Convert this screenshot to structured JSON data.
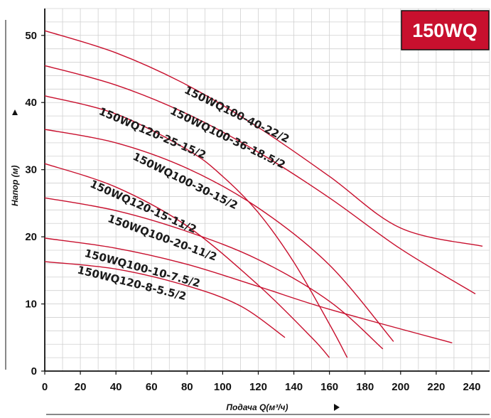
{
  "chart_data": {
    "type": "line",
    "title": "150WQ",
    "xlabel": "Подача Q(м³/ч)",
    "ylabel": "Напор (м)",
    "xlim": [
      0,
      250
    ],
    "ylim": [
      0,
      54
    ],
    "xticks": [
      "0",
      "20",
      "40",
      "60",
      "80",
      "100",
      "120",
      "140",
      "160",
      "180",
      "200",
      "220",
      "240"
    ],
    "yticks": [
      "0",
      "10",
      "20",
      "30",
      "40",
      "50"
    ],
    "grid": true,
    "series": [
      {
        "name": "150WQ100-40-22/2",
        "x": [
          0,
          40,
          80,
          120,
          160,
          200,
          246
        ],
        "y": [
          50.7,
          47.4,
          42.6,
          36.3,
          29.0,
          21.3,
          18.6
        ]
      },
      {
        "name": "150WQ100-36-18.5/2",
        "x": [
          0,
          40,
          80,
          120,
          160,
          200,
          242
        ],
        "y": [
          45.5,
          42.6,
          38.3,
          32.6,
          25.8,
          18.2,
          11.5
        ]
      },
      {
        "name": "150WQ120-25-15/2",
        "x": [
          0,
          40,
          80,
          100,
          120,
          140,
          160,
          170
        ],
        "y": [
          41.0,
          38.3,
          33.0,
          29.0,
          23.6,
          16.2,
          7.0,
          2.0
        ]
      },
      {
        "name": "150WQ100-30-15/2",
        "x": [
          0,
          40,
          80,
          120,
          160,
          196
        ],
        "y": [
          36.0,
          34.0,
          30.2,
          24.3,
          15.8,
          4.4
        ]
      },
      {
        "name": "150WQ120-15-11/2",
        "x": [
          0,
          40,
          80,
          120,
          150,
          160
        ],
        "y": [
          30.9,
          27.4,
          21.6,
          12.8,
          5.0,
          2.0
        ]
      },
      {
        "name": "150WQ100-20-11/2",
        "x": [
          0,
          40,
          80,
          120,
          160,
          190
        ],
        "y": [
          25.8,
          23.9,
          20.8,
          16.6,
          10.4,
          3.3
        ]
      },
      {
        "name": "150WQ100-10-7.5/2",
        "x": [
          0,
          40,
          80,
          120,
          160,
          229
        ],
        "y": [
          19.8,
          18.3,
          15.9,
          12.6,
          9.2,
          4.2
        ]
      },
      {
        "name": "150WQ120-8-5.5/2",
        "x": [
          0,
          40,
          80,
          110,
          135
        ],
        "y": [
          16.3,
          15.2,
          12.7,
          9.7,
          5.0
        ]
      }
    ],
    "labels": [
      {
        "text": "150WQ100-40-22/2",
        "x": 78,
        "y": 41.5,
        "rotate": 26
      },
      {
        "text": "150WQ100-36-18.5/2",
        "x": 70,
        "y": 38.4,
        "rotate": 26
      },
      {
        "text": "150WQ120-25-15/2",
        "x": 30,
        "y": 38.3,
        "rotate": 23
      },
      {
        "text": "150WQ100-30-15/2",
        "x": 49,
        "y": 31.6,
        "rotate": 26
      },
      {
        "text": "150WQ120-15-11/2",
        "x": 25,
        "y": 27.5,
        "rotate": 24
      },
      {
        "text": "150WQ100-20-11/2",
        "x": 35,
        "y": 22.3,
        "rotate": 20
      },
      {
        "text": "150WQ100-10-7.5/2",
        "x": 22,
        "y": 17.1,
        "rotate": 15
      },
      {
        "text": "150WQ120-8-5.5/2",
        "x": 18,
        "y": 14.6,
        "rotate": 14
      }
    ],
    "colors": {
      "curve": "#c8102e",
      "badge": "#c8102e",
      "grid": "#d0d0d0"
    }
  }
}
